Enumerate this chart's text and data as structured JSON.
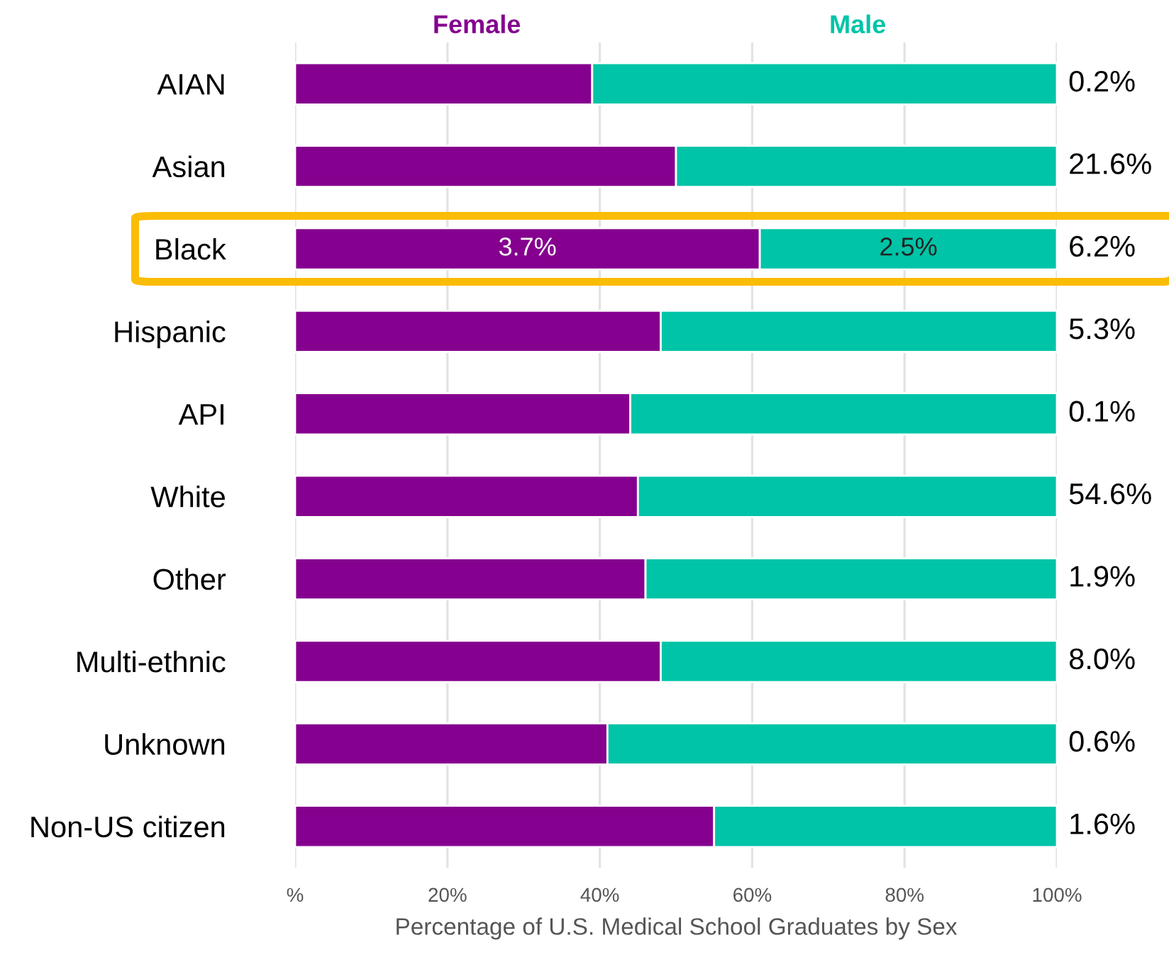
{
  "chart_data": {
    "type": "bar",
    "orientation": "horizontal",
    "stacked": true,
    "categories": [
      "AIAN",
      "Asian",
      "Black",
      "Hispanic",
      "API",
      "White",
      "Other",
      "Multi-ethnic",
      "Unknown",
      "Non-US citizen"
    ],
    "series": [
      {
        "name": "Female",
        "color": "#85008f",
        "values": [
          39,
          50,
          61,
          48,
          44,
          45,
          46,
          48,
          41,
          55
        ]
      },
      {
        "name": "Male",
        "color": "#00c4a7",
        "values": [
          61,
          50,
          39,
          52,
          56,
          55,
          54,
          52,
          59,
          45
        ]
      }
    ],
    "annotations": [
      "3.7%",
      "2.5%",
      "0.2%",
      "21.6%",
      "6.2%",
      "5.3%",
      "0.1%",
      "54.6%",
      "1.9%",
      "8.0%",
      "0.6%",
      "1.6%"
    ],
    "xlabel": "Percentage of U.S. Medical School Graduates by Sex",
    "xlim": [
      0,
      100
    ],
    "xticks": [
      {
        "value": 0,
        "label": "%"
      },
      {
        "value": 20,
        "label": "20%"
      },
      {
        "value": 40,
        "label": "40%"
      },
      {
        "value": 60,
        "label": "60%"
      },
      {
        "value": 80,
        "label": "80%"
      },
      {
        "value": 100,
        "label": "100%"
      }
    ],
    "grid": "x",
    "legend": "top"
  }
}
